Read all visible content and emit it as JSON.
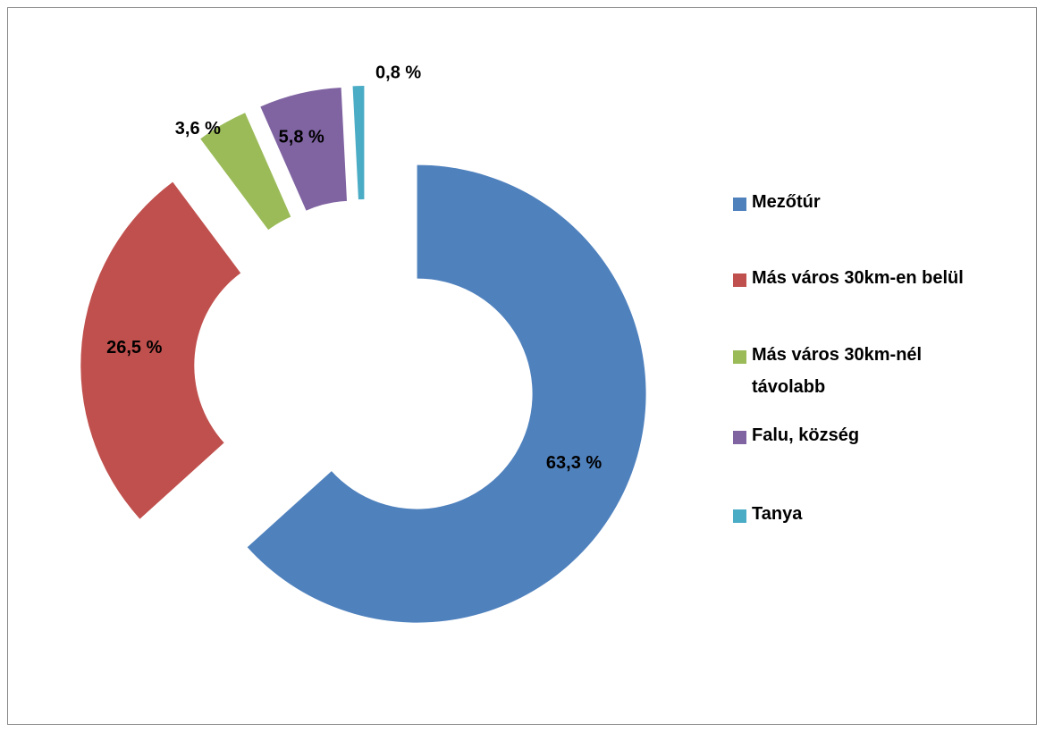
{
  "chart_data": {
    "type": "donut",
    "categories": [
      "Mezőtúr",
      "Más város 30km-en belül",
      "Más város 30km-nél távolabb",
      "Falu, község",
      "Tanya"
    ],
    "values": [
      63.3,
      26.5,
      3.6,
      5.8,
      0.8
    ],
    "value_labels": [
      "63,3 %",
      "26,5 %",
      "3,6 %",
      "5,8 %",
      "0,8 %"
    ],
    "colors": [
      "#4f81bd",
      "#c0504d",
      "#9bbb59",
      "#8064a2",
      "#4bacc6"
    ],
    "legend": "right"
  }
}
